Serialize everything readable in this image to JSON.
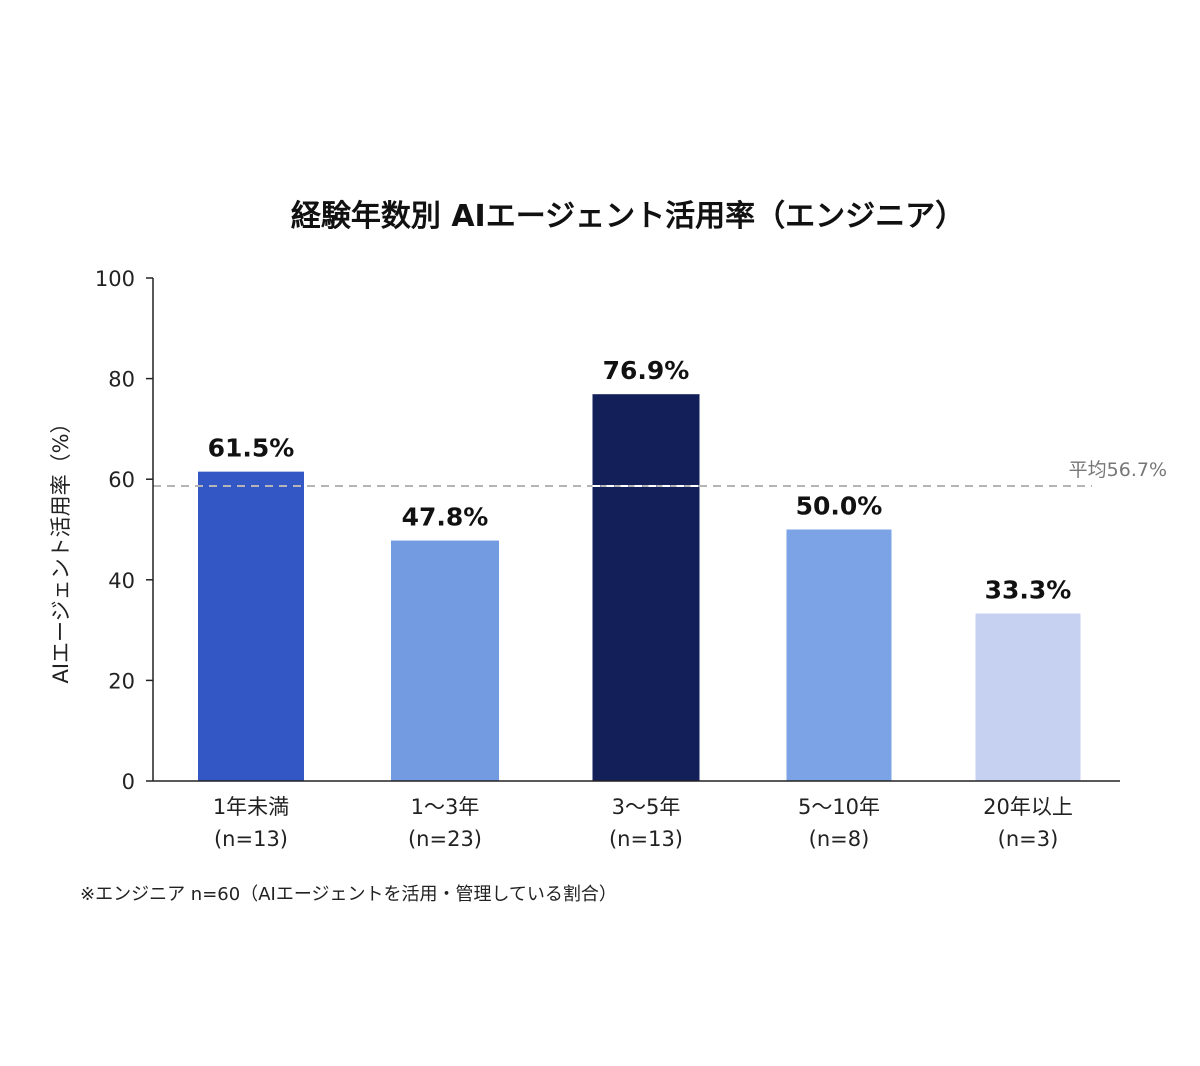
{
  "chart_data": {
    "type": "bar",
    "title": "経験年数別 AIエージェント活用率（エンジニア）",
    "ylabel": "AIエージェント活用率（%）",
    "xlabel": "",
    "ylim": [
      0,
      100
    ],
    "yticks": [
      0,
      20,
      40,
      60,
      80,
      100
    ],
    "grid": false,
    "categories": [
      "1年未満",
      "1〜3年",
      "3〜5年",
      "5〜10年",
      "20年以上"
    ],
    "sample_sizes": [
      "(n=13)",
      "(n=23)",
      "(n=13)",
      "(n=8)",
      "(n=3)"
    ],
    "values": [
      61.5,
      47.8,
      76.9,
      50.0,
      33.3
    ],
    "value_labels": [
      "61.5%",
      "47.8%",
      "76.9%",
      "50.0%",
      "33.3%"
    ],
    "colors": [
      "#3358c6",
      "#739be2",
      "#121f58",
      "#7ba3e6",
      "#c6d1f1"
    ],
    "average": {
      "value": 56.7,
      "label": "平均56.7%",
      "color": "#b5b5b5"
    },
    "footnote": "※エンジニア n=60（AIエージェントを活用・管理している割合）"
  }
}
